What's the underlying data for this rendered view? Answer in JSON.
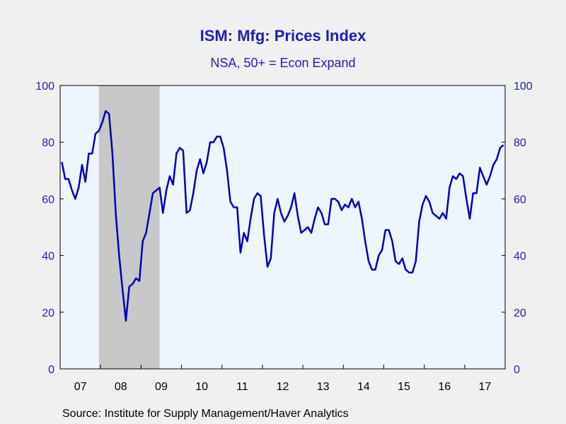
{
  "title": "ISM: Mfg: Prices Index",
  "subtitle": "NSA, 50+ = Econ Expand",
  "source": "Source:  Institute for Supply Management/Haver Analytics",
  "colors": {
    "line": "#0000b8",
    "plot_background": "#eef5ff",
    "page_background": "#f0f0f0",
    "recession_shade": "#c8c8c8",
    "axis_text_left": "#1f1fb0",
    "axis_text_x": "#000000"
  },
  "chart_data": {
    "type": "line",
    "title": "ISM: Mfg: Prices Index",
    "subtitle": "NSA, 50+ = Econ Expand",
    "xlabel": "",
    "ylabel": "",
    "ylim": [
      0,
      100
    ],
    "xlim": [
      "2007-01",
      "2017-12"
    ],
    "grid": false,
    "y_axes": [
      "left",
      "right"
    ],
    "yticks": [
      0,
      20,
      40,
      60,
      80,
      100
    ],
    "xtick_labels": [
      "07",
      "08",
      "09",
      "10",
      "11",
      "12",
      "13",
      "14",
      "15",
      "16",
      "17"
    ],
    "shaded_periods": [
      {
        "start": "2007-12",
        "end": "2009-06"
      }
    ],
    "series": [
      {
        "dates": [
          "2007-01",
          "2007-02",
          "2007-03",
          "2007-04",
          "2007-05",
          "2007-06",
          "2007-07",
          "2007-08",
          "2007-09",
          "2007-10",
          "2007-11",
          "2007-12",
          "2008-01",
          "2008-02",
          "2008-03",
          "2008-04",
          "2008-05",
          "2008-06",
          "2008-07",
          "2008-08",
          "2008-09",
          "2008-10",
          "2008-11",
          "2008-12",
          "2009-01",
          "2009-02",
          "2009-03",
          "2009-04",
          "2009-05",
          "2009-06",
          "2009-07",
          "2009-08",
          "2009-09",
          "2009-10",
          "2009-11",
          "2009-12",
          "2010-01",
          "2010-02",
          "2010-03",
          "2010-04",
          "2010-05",
          "2010-06",
          "2010-07",
          "2010-08",
          "2010-09",
          "2010-10",
          "2010-11",
          "2010-12",
          "2011-01",
          "2011-02",
          "2011-03",
          "2011-04",
          "2011-05",
          "2011-06",
          "2011-07",
          "2011-08",
          "2011-09",
          "2011-10",
          "2011-11",
          "2011-12",
          "2012-01",
          "2012-02",
          "2012-03",
          "2012-04",
          "2012-05",
          "2012-06",
          "2012-07",
          "2012-08",
          "2012-09",
          "2012-10",
          "2012-11",
          "2012-12",
          "2013-01",
          "2013-02",
          "2013-03",
          "2013-04",
          "2013-05",
          "2013-06",
          "2013-07",
          "2013-08",
          "2013-09",
          "2013-10",
          "2013-11",
          "2013-12",
          "2014-01",
          "2014-02",
          "2014-03",
          "2014-04",
          "2014-05",
          "2014-06",
          "2014-07",
          "2014-08",
          "2014-09",
          "2014-10",
          "2014-11",
          "2014-12",
          "2015-01",
          "2015-02",
          "2015-03",
          "2015-04",
          "2015-05",
          "2015-06",
          "2015-07",
          "2015-08",
          "2015-09",
          "2015-10",
          "2015-11",
          "2015-12",
          "2016-01",
          "2016-02",
          "2016-03",
          "2016-04",
          "2016-05",
          "2016-06",
          "2016-07",
          "2016-08",
          "2016-09",
          "2016-10",
          "2016-11",
          "2016-12",
          "2017-01",
          "2017-02",
          "2017-03",
          "2017-04",
          "2017-05",
          "2017-06",
          "2017-07",
          "2017-08",
          "2017-09",
          "2017-10",
          "2017-11",
          "2017-12"
        ],
        "values": [
          73,
          67,
          67,
          63,
          60,
          64,
          72,
          66,
          76,
          76,
          83,
          84,
          87,
          91,
          90,
          76,
          55,
          40,
          28,
          17,
          29,
          30,
          32,
          31,
          45,
          48,
          55,
          62,
          63,
          64,
          55,
          63,
          68,
          65,
          76,
          78,
          77,
          55,
          56,
          62,
          70,
          74,
          69,
          73,
          80,
          80,
          82,
          82,
          78,
          70,
          59,
          57,
          57,
          41,
          48,
          45,
          53,
          60,
          62,
          61,
          47,
          36,
          39,
          55,
          60,
          55,
          52,
          54,
          57,
          62,
          54,
          48,
          49,
          50,
          48,
          53,
          57,
          55,
          51,
          51,
          60,
          60,
          59,
          56,
          58,
          57,
          60,
          57,
          59,
          53,
          45,
          38,
          35,
          35,
          40,
          42,
          49,
          49,
          45,
          38,
          37,
          39,
          35,
          34,
          34,
          38,
          52,
          58,
          61,
          59,
          55,
          54,
          53,
          55,
          53,
          64,
          68,
          67,
          69,
          68,
          60,
          53,
          62,
          62,
          71,
          68,
          65,
          68,
          72,
          74,
          78,
          79
        ]
      }
    ]
  }
}
